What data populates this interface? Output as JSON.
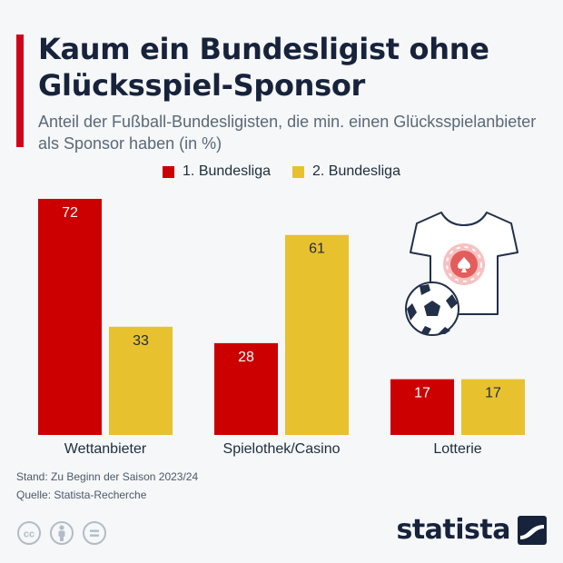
{
  "title": "Kaum ein Bundesligist ohne Glücksspiel-Sponsor",
  "subtitle": "Anteil der Fußball-Bundesligisten, die min. einen Glücksspielanbieter als Sponsor haben (in %)",
  "colors": {
    "accent": "#d0021b",
    "series1": "#cc0000",
    "series2": "#e8c12f"
  },
  "legend": [
    "1. Bundesliga",
    "2. Bundesliga"
  ],
  "footer": {
    "stand": "Stand: Zu Beginn der Saison 2023/24",
    "quelle": "Quelle: Statista-Recherche",
    "brand": "statista"
  },
  "icons": [
    "cc-icon",
    "person-icon",
    "equal-icon",
    "statista-logo-icon",
    "football-jersey-icon",
    "football-icon"
  ],
  "chart_data": {
    "type": "bar",
    "categories": [
      "Wettanbieter",
      "Spielothek/Casino",
      "Lotterie"
    ],
    "series": [
      {
        "name": "1. Bundesliga",
        "values": [
          72,
          28,
          17
        ]
      },
      {
        "name": "2. Bundesliga",
        "values": [
          33,
          61,
          17
        ]
      }
    ],
    "ylim": [
      0,
      72
    ],
    "grid": false,
    "legend_position": "top"
  }
}
